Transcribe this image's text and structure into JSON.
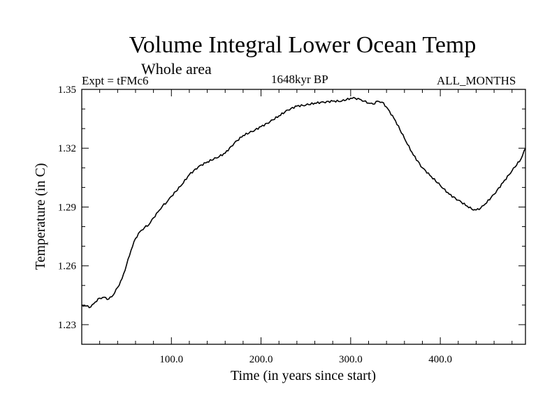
{
  "header": {
    "title": "Volume Integral Lower Ocean Temp",
    "subtitle": "Whole area",
    "left_label": "Expt = tFMc6",
    "center_label": "1648kyr BP",
    "right_label": "ALL_MONTHS"
  },
  "chart_data": {
    "type": "line",
    "title": "Volume Integral Lower Ocean Temp",
    "subtitle": "Whole area",
    "xlabel": "Time (in years since start)",
    "ylabel": "Temperature (in C)",
    "xlim": [
      0,
      495
    ],
    "ylim": [
      1.22,
      1.35
    ],
    "x_ticks": [
      100,
      200,
      300,
      400
    ],
    "x_tick_labels": [
      "100.0",
      "200.0",
      "300.0",
      "400.0"
    ],
    "y_ticks": [
      1.23,
      1.26,
      1.29,
      1.32,
      1.35
    ],
    "y_tick_labels": [
      "1.23",
      "1.26",
      "1.29",
      "1.32",
      "1.35"
    ],
    "grid": false,
    "series": [
      {
        "name": "Temperature",
        "x": [
          0,
          5,
          10,
          15,
          20,
          25,
          30,
          35,
          40,
          45,
          50,
          55,
          60,
          65,
          70,
          75,
          80,
          85,
          90,
          95,
          100,
          110,
          120,
          130,
          140,
          150,
          160,
          170,
          180,
          190,
          200,
          210,
          220,
          230,
          240,
          250,
          260,
          270,
          280,
          290,
          300,
          305,
          310,
          315,
          320,
          325,
          330,
          335,
          340,
          350,
          360,
          370,
          380,
          390,
          400,
          410,
          420,
          430,
          435,
          440,
          445,
          450,
          460,
          470,
          480,
          490,
          495
        ],
        "y": [
          1.24,
          1.2395,
          1.239,
          1.2415,
          1.2435,
          1.244,
          1.243,
          1.245,
          1.249,
          1.2535,
          1.2605,
          1.268,
          1.274,
          1.2775,
          1.2795,
          1.281,
          1.2845,
          1.2875,
          1.2905,
          1.2925,
          1.2955,
          1.3005,
          1.3065,
          1.3105,
          1.313,
          1.315,
          1.3175,
          1.3225,
          1.3265,
          1.3285,
          1.331,
          1.3335,
          1.3365,
          1.3395,
          1.3415,
          1.342,
          1.343,
          1.3435,
          1.344,
          1.344,
          1.3455,
          1.3455,
          1.345,
          1.344,
          1.343,
          1.3425,
          1.344,
          1.3435,
          1.341,
          1.334,
          1.325,
          1.3165,
          1.31,
          1.3055,
          1.301,
          1.2965,
          1.2935,
          1.2905,
          1.289,
          1.2885,
          1.2895,
          1.2915,
          1.2965,
          1.3025,
          1.3085,
          1.3145,
          1.32
        ]
      }
    ]
  }
}
